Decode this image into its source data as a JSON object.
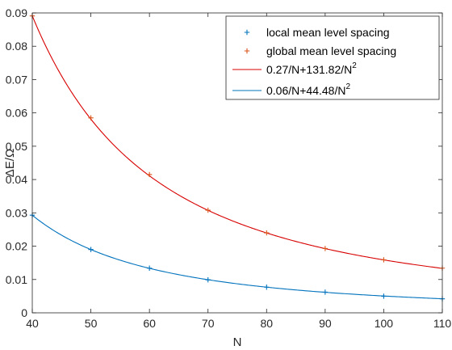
{
  "chart_data": {
    "type": "scatter",
    "xlabel": "N",
    "ylabel": "ΔE/Ω",
    "xlim": [
      40,
      110
    ],
    "ylim": [
      0,
      0.09
    ],
    "xticks": [
      40,
      50,
      60,
      70,
      80,
      90,
      100,
      110
    ],
    "yticks": [
      0,
      0.01,
      0.02,
      0.03,
      0.04,
      0.05,
      0.06,
      0.07,
      0.08,
      0.09
    ],
    "grid": false,
    "legend_position": "top-right",
    "x": [
      40,
      50,
      60,
      70,
      80,
      90,
      100,
      110
    ],
    "series": [
      {
        "name": "local mean level spacing",
        "kind": "points",
        "marker": "+",
        "color": "#0072BD",
        "values": [
          0.0293,
          0.019,
          0.0134,
          0.0099,
          0.0077,
          0.0062,
          0.005,
          0.0042
        ]
      },
      {
        "name": "global mean level spacing",
        "kind": "points",
        "marker": "+",
        "color": "#D95319",
        "values": [
          0.0891,
          0.0585,
          0.0415,
          0.0308,
          0.024,
          0.0193,
          0.0159,
          0.0134
        ]
      },
      {
        "name": "0.27/N+131.82/N",
        "name_superscript": "2",
        "kind": "line",
        "color": "#D80000",
        "fit": {
          "a": 0.27,
          "b": 131.82
        }
      },
      {
        "name": "0.06/N+44.48/N",
        "name_superscript": "2",
        "kind": "line",
        "color": "#0072BD",
        "fit": {
          "a": 0.06,
          "b": 44.48
        }
      }
    ]
  }
}
